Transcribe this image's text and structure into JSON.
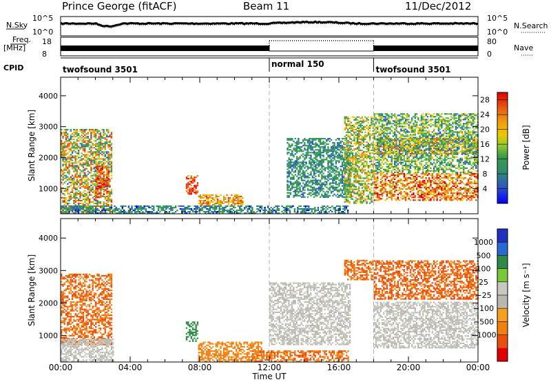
{
  "header": {
    "station": "Prince George (fitACF)",
    "beam": "Beam 11",
    "date": "11/Dec/2012"
  },
  "params": {
    "nsky_label": "N.Sky",
    "nsky_ticks": [
      "10^5",
      "10^0"
    ],
    "nsearch_label": "N.Search",
    "nsearch_ticks": [
      "10^5",
      "10^0"
    ],
    "freq_label": "Freq.",
    "freq_unit": "[MHz]",
    "freq_ticks": [
      "18",
      "8"
    ],
    "nave_label": "Nave",
    "nave_ticks": [
      "80",
      "0"
    ],
    "cpid_label": "CPID",
    "cpid_segments": [
      {
        "label": "twofsound 3501",
        "start_hour": 0,
        "end_hour": 12
      },
      {
        "label": "normal 150",
        "start_hour": 12,
        "end_hour": 18
      },
      {
        "label": "twofsound 3501",
        "start_hour": 18,
        "end_hour": 24
      }
    ]
  },
  "colors": {
    "power_scale": [
      "#0000ff",
      "#2a5fc4",
      "#3e9a62",
      "#2f9a4c",
      "#78c23a",
      "#f0c800",
      "#f09a10",
      "#f07010",
      "#e83a10",
      "#e00000"
    ],
    "velocity_scale": [
      "#2030c0",
      "#2a6ad0",
      "#2f8a4a",
      "#78c83a",
      "#c8c8c0",
      "#b8b8b0",
      "#f4a020",
      "#f08010",
      "#e85010",
      "#e00000"
    ],
    "ground_scatter": "#c0c0b8",
    "dashed_line": "#b0b0b0"
  },
  "chart_data": [
    {
      "type": "heatmap",
      "title": "",
      "xlabel": "Time UT",
      "ylabel": "Slant Range [km]",
      "xticks": [
        "00:00",
        "04:00",
        "08:00",
        "12:00",
        "16:00",
        "20:00",
        "00:00"
      ],
      "xlim_hours": [
        0,
        24
      ],
      "yticks": [
        "1000",
        "2000",
        "3000",
        "4000"
      ],
      "ylim": [
        180,
        4600
      ],
      "colorbar": {
        "label": "Power [dB]",
        "ticks": [
          "4",
          "8",
          "12",
          "16",
          "20",
          "24",
          "28"
        ],
        "range": [
          0,
          30
        ]
      },
      "dashed_times_hours": [
        12,
        18
      ],
      "echo_regions": [
        {
          "t0": 0.0,
          "t1": 2.9,
          "r0": 180,
          "r1": 2900,
          "v0": 4,
          "v1": 26
        },
        {
          "t0": 2.0,
          "t1": 2.8,
          "r0": 700,
          "r1": 1700,
          "v0": 18,
          "v1": 30
        },
        {
          "t0": 7.2,
          "t1": 7.9,
          "r0": 800,
          "r1": 1400,
          "v0": 20,
          "v1": 30
        },
        {
          "t0": 7.9,
          "t1": 10.5,
          "r0": 450,
          "r1": 800,
          "v0": 14,
          "v1": 26
        },
        {
          "t0": 0.0,
          "t1": 16.5,
          "r0": 180,
          "r1": 450,
          "v0": 2,
          "v1": 12
        },
        {
          "t0": 13.0,
          "t1": 16.6,
          "r0": 700,
          "r1": 2600,
          "v0": 4,
          "v1": 12
        },
        {
          "t0": 16.3,
          "t1": 18.0,
          "r0": 500,
          "r1": 3300,
          "v0": 6,
          "v1": 22
        },
        {
          "t0": 18.0,
          "t1": 24.0,
          "r0": 600,
          "r1": 1500,
          "v0": 14,
          "v1": 30
        },
        {
          "t0": 18.0,
          "t1": 24.0,
          "r0": 2100,
          "r1": 2600,
          "v0": 14,
          "v1": 26
        },
        {
          "t0": 18.0,
          "t1": 24.0,
          "r0": 1500,
          "r1": 3400,
          "v0": 4,
          "v1": 18
        }
      ]
    },
    {
      "type": "heatmap",
      "title": "",
      "xlabel": "Time UT",
      "ylabel": "Slant Range [km]",
      "xticks": [
        "00:00",
        "04:00",
        "08:00",
        "12:00",
        "16:00",
        "20:00",
        "00:00"
      ],
      "xlim_hours": [
        0,
        24
      ],
      "yticks": [
        "1000",
        "2000",
        "3000",
        "4000"
      ],
      "ylim": [
        180,
        4600
      ],
      "colorbar": {
        "label": "Velocity [m s⁻¹]",
        "ticks": [
          "1000",
          "500",
          "100",
          "25",
          "−25",
          "−100",
          "−500",
          "−1000"
        ]
      },
      "dashed_times_hours": [
        12,
        18
      ],
      "echo_regions": [
        {
          "t0": 0.0,
          "t1": 2.9,
          "r0": 700,
          "r1": 2900,
          "v0": -500,
          "v1": -80
        },
        {
          "t0": 0.0,
          "t1": 3.0,
          "r0": 180,
          "r1": 900,
          "v0": -25,
          "v1": 25
        },
        {
          "t0": 7.2,
          "t1": 7.9,
          "r0": 800,
          "r1": 1400,
          "v0": 80,
          "v1": 300
        },
        {
          "t0": 7.9,
          "t1": 11.5,
          "r0": 180,
          "r1": 800,
          "v0": -300,
          "v1": -80
        },
        {
          "t0": 11.0,
          "t1": 16.5,
          "r0": 180,
          "r1": 500,
          "v0": -500,
          "v1": -80
        },
        {
          "t0": 12.0,
          "t1": 16.6,
          "r0": 700,
          "r1": 2600,
          "v0": -20,
          "v1": 20
        },
        {
          "t0": 16.3,
          "t1": 18.0,
          "r0": 2700,
          "r1": 3300,
          "v0": -500,
          "v1": -80
        },
        {
          "t0": 18.0,
          "t1": 24.0,
          "r0": 600,
          "r1": 2000,
          "v0": -20,
          "v1": 20
        },
        {
          "t0": 18.0,
          "t1": 24.0,
          "r0": 2100,
          "r1": 3300,
          "v0": -600,
          "v1": -80
        }
      ]
    }
  ]
}
